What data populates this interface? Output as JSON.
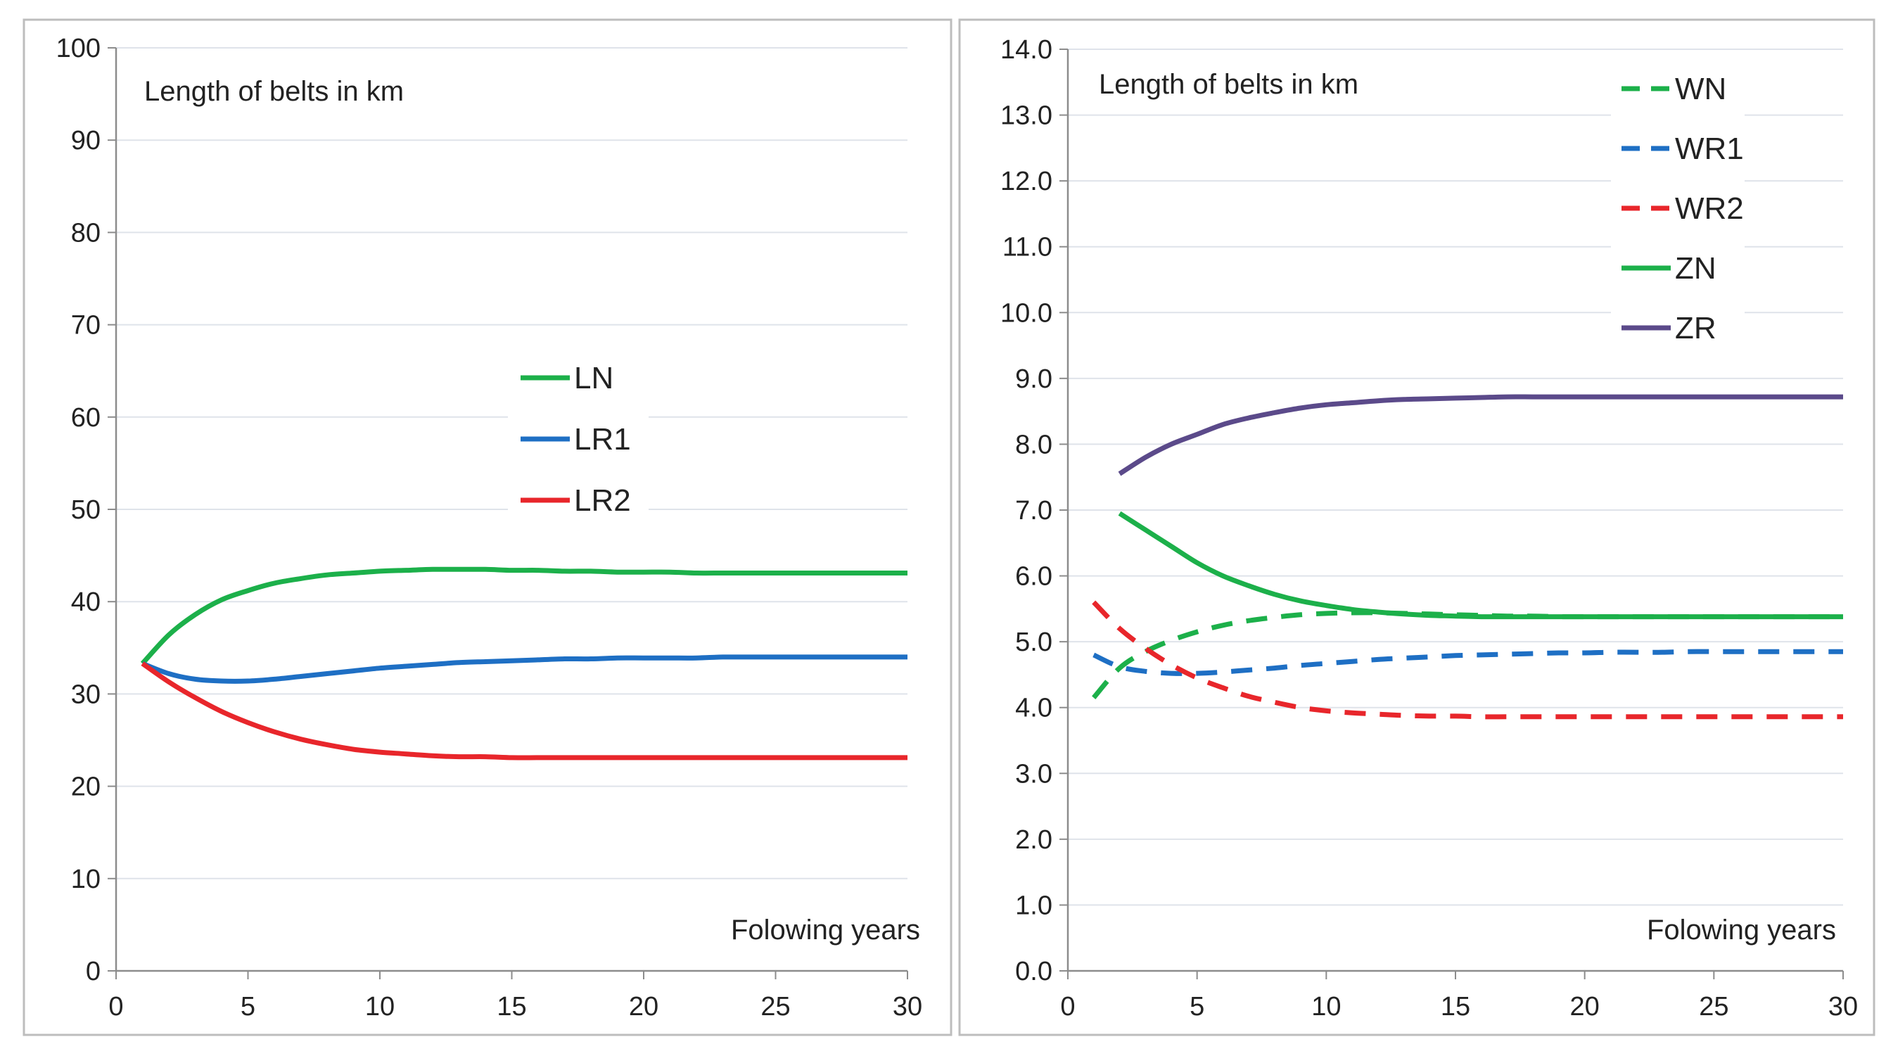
{
  "chart_data": [
    {
      "type": "line",
      "annotation": "Length of belts in km",
      "xlabel": "Folowing years",
      "ylabel": "",
      "xlim": [
        0,
        30
      ],
      "ylim": [
        0,
        100
      ],
      "xticks": [
        "0",
        "5",
        "10",
        "15",
        "20",
        "25",
        "30"
      ],
      "yticks": [
        "0",
        "10",
        "20",
        "30",
        "40",
        "50",
        "60",
        "70",
        "80",
        "90",
        "100"
      ],
      "grid": true,
      "legend_position": "center",
      "series": [
        {
          "name": "LN",
          "color": "#1cb04a",
          "dash": false,
          "x": [
            1,
            2,
            3,
            4,
            5,
            6,
            7,
            8,
            9,
            10,
            11,
            12,
            13,
            14,
            15,
            16,
            17,
            18,
            19,
            20,
            21,
            22,
            23,
            24,
            25,
            26,
            27,
            28,
            29,
            30
          ],
          "values": [
            33.3,
            36.4,
            38.6,
            40.2,
            41.2,
            42.0,
            42.5,
            42.9,
            43.1,
            43.3,
            43.4,
            43.5,
            43.5,
            43.5,
            43.4,
            43.4,
            43.3,
            43.3,
            43.2,
            43.2,
            43.2,
            43.1,
            43.1,
            43.1,
            43.1,
            43.1,
            43.1,
            43.1,
            43.1,
            43.1
          ]
        },
        {
          "name": "LR1",
          "color": "#1e6fc4",
          "dash": false,
          "x": [
            1,
            2,
            3,
            4,
            5,
            6,
            7,
            8,
            9,
            10,
            11,
            12,
            13,
            14,
            15,
            16,
            17,
            18,
            19,
            20,
            21,
            22,
            23,
            24,
            25,
            26,
            27,
            28,
            29,
            30
          ],
          "values": [
            33.3,
            32.2,
            31.6,
            31.4,
            31.4,
            31.6,
            31.9,
            32.2,
            32.5,
            32.8,
            33.0,
            33.2,
            33.4,
            33.5,
            33.6,
            33.7,
            33.8,
            33.8,
            33.9,
            33.9,
            33.9,
            33.9,
            34.0,
            34.0,
            34.0,
            34.0,
            34.0,
            34.0,
            34.0,
            34.0
          ]
        },
        {
          "name": "LR2",
          "color": "#e8262b",
          "dash": false,
          "x": [
            1,
            2,
            3,
            4,
            5,
            6,
            7,
            8,
            9,
            10,
            11,
            12,
            13,
            14,
            15,
            16,
            17,
            18,
            19,
            20,
            21,
            22,
            23,
            24,
            25,
            26,
            27,
            28,
            29,
            30
          ],
          "values": [
            33.3,
            31.3,
            29.6,
            28.1,
            26.9,
            25.9,
            25.1,
            24.5,
            24.0,
            23.7,
            23.5,
            23.3,
            23.2,
            23.2,
            23.1,
            23.1,
            23.1,
            23.1,
            23.1,
            23.1,
            23.1,
            23.1,
            23.1,
            23.1,
            23.1,
            23.1,
            23.1,
            23.1,
            23.1,
            23.1
          ]
        }
      ]
    },
    {
      "type": "line",
      "annotation": "Length of belts in km",
      "xlabel": "Folowing years",
      "ylabel": "",
      "xlim": [
        0,
        30
      ],
      "ylim": [
        0,
        14
      ],
      "xticks": [
        "0",
        "5",
        "10",
        "15",
        "20",
        "25",
        "30"
      ],
      "yticks": [
        "0.0",
        "1.0",
        "2.0",
        "3.0",
        "4.0",
        "5.0",
        "6.0",
        "7.0",
        "8.0",
        "9.0",
        "10.0",
        "11.0",
        "12.0",
        "13.0",
        "14.0"
      ],
      "grid": true,
      "legend_position": "top-right",
      "series": [
        {
          "name": "WN",
          "color": "#1cb04a",
          "dash": true,
          "x": [
            1,
            2,
            3,
            4,
            5,
            6,
            7,
            8,
            9,
            10,
            11,
            12,
            13,
            14,
            15,
            16,
            17,
            18,
            19,
            20,
            21,
            22,
            23,
            24,
            25,
            26,
            27,
            28,
            29,
            30
          ],
          "values": [
            4.15,
            4.6,
            4.85,
            5.02,
            5.15,
            5.25,
            5.32,
            5.37,
            5.41,
            5.43,
            5.44,
            5.44,
            5.43,
            5.42,
            5.41,
            5.4,
            5.39,
            5.39,
            5.38,
            5.38,
            5.38,
            5.38,
            5.38,
            5.38,
            5.38,
            5.38,
            5.38,
            5.38,
            5.38,
            5.38
          ]
        },
        {
          "name": "WR1",
          "color": "#1e6fc4",
          "dash": true,
          "x": [
            1,
            2,
            3,
            4,
            5,
            6,
            7,
            8,
            9,
            10,
            11,
            12,
            13,
            14,
            15,
            16,
            17,
            18,
            19,
            20,
            21,
            22,
            23,
            24,
            25,
            26,
            27,
            28,
            29,
            30
          ],
          "values": [
            4.8,
            4.62,
            4.55,
            4.52,
            4.52,
            4.54,
            4.57,
            4.6,
            4.64,
            4.67,
            4.7,
            4.73,
            4.75,
            4.77,
            4.79,
            4.8,
            4.81,
            4.82,
            4.83,
            4.83,
            4.84,
            4.84,
            4.84,
            4.85,
            4.85,
            4.85,
            4.85,
            4.85,
            4.85,
            4.85
          ]
        },
        {
          "name": "WR2",
          "color": "#e8262b",
          "dash": true,
          "x": [
            1,
            2,
            3,
            4,
            5,
            6,
            7,
            8,
            9,
            10,
            11,
            12,
            13,
            14,
            15,
            16,
            17,
            18,
            19,
            20,
            21,
            22,
            23,
            24,
            25,
            26,
            27,
            28,
            29,
            30
          ],
          "values": [
            5.6,
            5.2,
            4.9,
            4.65,
            4.45,
            4.3,
            4.17,
            4.08,
            4.0,
            3.95,
            3.92,
            3.9,
            3.88,
            3.87,
            3.87,
            3.86,
            3.86,
            3.86,
            3.86,
            3.86,
            3.86,
            3.86,
            3.86,
            3.86,
            3.86,
            3.86,
            3.86,
            3.86,
            3.86,
            3.86
          ]
        },
        {
          "name": "ZN",
          "color": "#1cb04a",
          "dash": false,
          "x": [
            2,
            3,
            4,
            5,
            6,
            7,
            8,
            9,
            10,
            11,
            12,
            13,
            14,
            15,
            16,
            17,
            18,
            19,
            20,
            21,
            22,
            23,
            24,
            25,
            26,
            27,
            28,
            29,
            30
          ],
          "values": [
            6.95,
            6.7,
            6.45,
            6.2,
            6.0,
            5.85,
            5.72,
            5.62,
            5.55,
            5.49,
            5.45,
            5.42,
            5.4,
            5.39,
            5.38,
            5.38,
            5.38,
            5.38,
            5.38,
            5.38,
            5.38,
            5.38,
            5.38,
            5.38,
            5.38,
            5.38,
            5.38,
            5.38,
            5.38
          ]
        },
        {
          "name": "ZR",
          "color": "#5b4a8a",
          "dash": false,
          "x": [
            2,
            3,
            4,
            5,
            6,
            7,
            8,
            9,
            10,
            11,
            12,
            13,
            14,
            15,
            16,
            17,
            18,
            19,
            20,
            21,
            22,
            23,
            24,
            25,
            26,
            27,
            28,
            29,
            30
          ],
          "values": [
            7.55,
            7.8,
            8.0,
            8.15,
            8.3,
            8.4,
            8.48,
            8.55,
            8.6,
            8.63,
            8.66,
            8.68,
            8.69,
            8.7,
            8.71,
            8.72,
            8.72,
            8.72,
            8.72,
            8.72,
            8.72,
            8.72,
            8.72,
            8.72,
            8.72,
            8.72,
            8.72,
            8.72,
            8.72
          ]
        }
      ]
    }
  ]
}
